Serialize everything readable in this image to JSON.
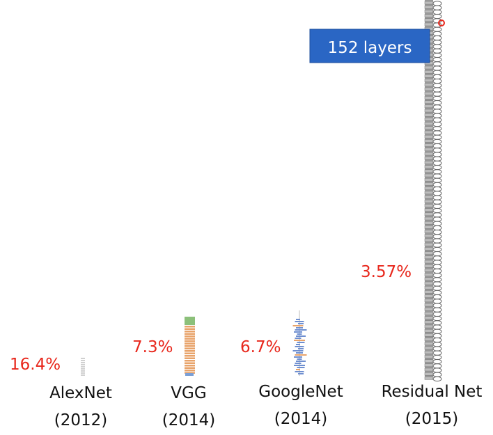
{
  "models": [
    {
      "name": "AlexNet",
      "year": "(2012)",
      "error": "16.4%"
    },
    {
      "name": "VGG",
      "year": "(2014)",
      "error": "7.3%"
    },
    {
      "name": "GoogleNet",
      "year": "(2014)",
      "error": "6.7%"
    },
    {
      "name": "Residual Net",
      "year": "(2015)",
      "error": "3.57%"
    }
  ],
  "badge": "152 layers"
}
